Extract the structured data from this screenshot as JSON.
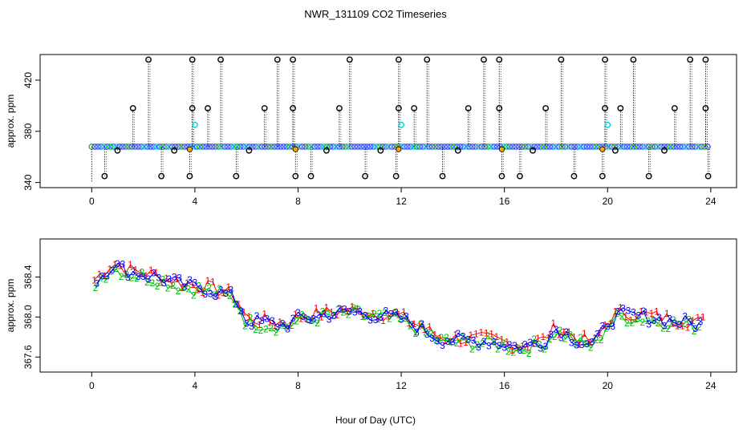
{
  "title": "NWR_131109  CO2 Timeseries",
  "xlabel": "Hour of Day (UTC)",
  "colors": {
    "outlier": "#000000",
    "flagged": "#ffa500",
    "series_1": "#ff0000",
    "series_2": "#00c000",
    "series_3": "#0000ff",
    "cyan": "#00d0d0",
    "top_points": "#3050ff"
  },
  "chart_data": [
    {
      "type": "scatter",
      "ylabel": "approx. ppm",
      "xlim": [
        -2,
        25
      ],
      "ylim": [
        336,
        440
      ],
      "xticks": [
        0,
        4,
        8,
        12,
        16,
        20,
        24
      ],
      "yticks": [
        340,
        380,
        420
      ],
      "ytick_labels": [
        "340",
        "380",
        "420"
      ],
      "baseline": 368,
      "grid": false,
      "series": [
        {
          "marker": "open-circle",
          "color": "outlier",
          "points": [
            [
              2.2,
              436
            ],
            [
              3.9,
              436
            ],
            [
              5.0,
              436
            ],
            [
              7.2,
              436
            ],
            [
              7.8,
              436
            ],
            [
              10.0,
              436
            ],
            [
              11.9,
              436
            ],
            [
              13.0,
              436
            ],
            [
              15.2,
              436
            ],
            [
              15.8,
              436
            ],
            [
              18.2,
              436
            ],
            [
              19.9,
              436
            ],
            [
              21.0,
              436
            ],
            [
              23.2,
              436
            ],
            [
              23.8,
              436
            ],
            [
              1.6,
              398
            ],
            [
              3.9,
              398
            ],
            [
              4.5,
              398
            ],
            [
              6.7,
              398
            ],
            [
              7.8,
              398
            ],
            [
              9.6,
              398
            ],
            [
              11.9,
              398
            ],
            [
              12.5,
              398
            ],
            [
              14.6,
              398
            ],
            [
              15.8,
              398
            ],
            [
              17.6,
              398
            ],
            [
              19.9,
              398
            ],
            [
              20.5,
              398
            ],
            [
              22.6,
              398
            ],
            [
              23.8,
              398
            ],
            [
              0.5,
              345
            ],
            [
              2.7,
              345
            ],
            [
              3.8,
              345
            ],
            [
              5.6,
              345
            ],
            [
              7.9,
              345
            ],
            [
              8.5,
              345
            ],
            [
              10.6,
              345
            ],
            [
              11.8,
              345
            ],
            [
              13.6,
              345
            ],
            [
              15.9,
              345
            ],
            [
              16.6,
              345
            ],
            [
              18.7,
              345
            ],
            [
              19.8,
              345
            ],
            [
              21.6,
              345
            ],
            [
              23.9,
              345
            ],
            [
              1.0,
              365
            ],
            [
              3.2,
              365
            ],
            [
              6.1,
              365
            ],
            [
              9.1,
              365
            ],
            [
              11.2,
              365
            ],
            [
              14.2,
              365
            ],
            [
              17.1,
              365
            ],
            [
              20.3,
              365
            ],
            [
              22.2,
              365
            ]
          ]
        },
        {
          "marker": "open-circle",
          "color": "cyan",
          "points": [
            [
              4.0,
              385
            ],
            [
              12.0,
              385
            ],
            [
              20.0,
              385
            ]
          ]
        },
        {
          "marker": "filled-circle",
          "color": "flagged",
          "points": [
            [
              3.8,
              366
            ],
            [
              7.9,
              366
            ],
            [
              11.9,
              366
            ],
            [
              15.9,
              366
            ],
            [
              19.8,
              366
            ]
          ]
        }
      ]
    },
    {
      "type": "scatter",
      "ylabel": "approx. ppm",
      "xlim": [
        -2,
        25
      ],
      "ylim": [
        367.45,
        368.78
      ],
      "xticks": [
        0,
        4,
        8,
        12,
        16,
        20,
        24
      ],
      "yticks": [
        367.6,
        368.0,
        368.4
      ],
      "ytick_labels": [
        "367.6",
        "368.0",
        "368.4"
      ],
      "grid": false,
      "marker": "digit",
      "trend": {
        "x": [
          0.1,
          0.8,
          1.5,
          2.5,
          3.5,
          4.5,
          5.5,
          5.8,
          6.0,
          6.5,
          7.5,
          8.0,
          9.0,
          10.0,
          11.0,
          12.0,
          12.5,
          13.0,
          13.5,
          14.5,
          15.5,
          16.5,
          17.5,
          18.0,
          18.3,
          18.6,
          19.0,
          19.5,
          20.0,
          20.5,
          21.5,
          22.5,
          23.5
        ],
        "y": [
          368.35,
          368.52,
          368.45,
          368.4,
          368.32,
          368.28,
          368.2,
          368.08,
          367.96,
          367.95,
          367.92,
          367.98,
          368.02,
          368.05,
          368.02,
          367.98,
          367.92,
          367.85,
          367.78,
          367.76,
          367.76,
          367.7,
          367.75,
          367.88,
          367.85,
          367.8,
          367.75,
          367.72,
          367.95,
          368.02,
          368.0,
          367.96,
          367.93
        ]
      },
      "series": [
        {
          "label": "1",
          "color": "series_1"
        },
        {
          "label": "2",
          "color": "series_2"
        },
        {
          "label": "3",
          "color": "series_3"
        }
      ]
    }
  ]
}
